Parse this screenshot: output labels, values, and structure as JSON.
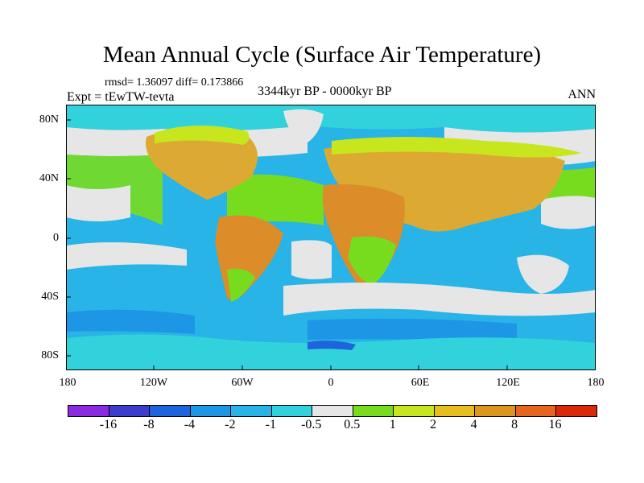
{
  "title": "Mean Annual Cycle (Surface Air Temperature)",
  "stats_line": "rmsd= 1.36097  diff= 0.173866",
  "experiment": "Expt = tEwTW-tevta",
  "period": "3344kyr BP - 0000kyr BP",
  "season": "ANN",
  "y_axis_labels": [
    "80N",
    "40N",
    "0",
    "40S",
    "80S"
  ],
  "x_axis_labels": [
    "180",
    "120W",
    "60W",
    "0",
    "60E",
    "120E",
    "180"
  ],
  "colorbar": {
    "labels": [
      "-16",
      "-8",
      "-4",
      "-2",
      "-1",
      "-0.5",
      "0.5",
      "1",
      "2",
      "4",
      "8",
      "16"
    ],
    "colors": [
      "#8a2be2",
      "#3c3ccd",
      "#1e64dc",
      "#1e96e6",
      "#28b4e6",
      "#32d2dc",
      "#e6e6e6",
      "#78dc1e",
      "#c8e61e",
      "#e6be1e",
      "#dc961e",
      "#e6641e",
      "#dc280a"
    ]
  },
  "palette": {
    "ocean": "#28b4e6",
    "ocean_light": "#32d2dc",
    "ocean_dark": "#1e96e6",
    "neutral": "#e6e6e6",
    "warm1": "#78dc1e",
    "warm2": "#c8e61e",
    "warm4": "#dcaa32",
    "warm8": "#dc8c28"
  }
}
